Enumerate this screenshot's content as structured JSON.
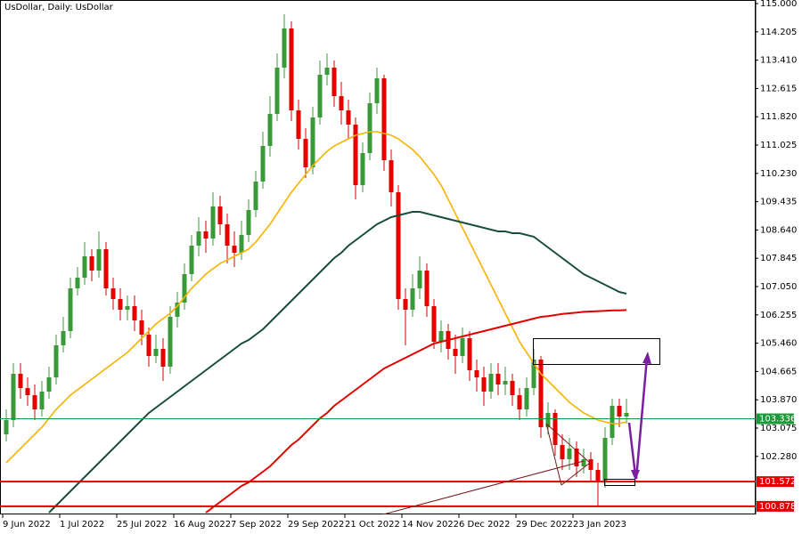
{
  "chart_data": {
    "type": "candlestick",
    "title": "UsDollar, Daily:  UsDollar",
    "categories": [
      "9 Jun 2022",
      null,
      null,
      null,
      null,
      null,
      null,
      null,
      "1 Jul 2022",
      null,
      null,
      null,
      null,
      null,
      null,
      null,
      "25 Jul 2022",
      null,
      null,
      null,
      null,
      null,
      null,
      null,
      "16 Aug 2022",
      null,
      null,
      null,
      null,
      null,
      null,
      null,
      "7 Sep 2022",
      null,
      null,
      null,
      null,
      null,
      null,
      null,
      "29 Sep 2022",
      null,
      null,
      null,
      null,
      null,
      null,
      null,
      "21 Oct 2022",
      null,
      null,
      null,
      null,
      null,
      null,
      null,
      "14 Nov 2022",
      null,
      null,
      null,
      null,
      null,
      null,
      null,
      "6 Dec 2022",
      null,
      null,
      null,
      null,
      null,
      null,
      null,
      "29 Dec 2022",
      null,
      null,
      null,
      null,
      null,
      null,
      null,
      "23 Jan 2023",
      null,
      null,
      null,
      null,
      null,
      null,
      null
    ],
    "open": [
      102.9,
      103.3,
      104.6,
      104.2,
      104.0,
      103.6,
      104.1,
      104.5,
      105.4,
      105.8,
      107.0,
      107.3,
      107.9,
      107.5,
      108.1,
      107.0,
      106.7,
      106.4,
      106.5,
      106.1,
      105.7,
      105.1,
      105.3,
      104.8,
      106.2,
      106.6,
      107.4,
      108.2,
      108.6,
      108.4,
      109.3,
      108.8,
      108.2,
      108.0,
      108.5,
      109.2,
      110.0,
      111.0,
      111.9,
      113.2,
      114.3,
      112.0,
      111.2,
      110.4,
      111.8,
      113.0,
      113.2,
      112.4,
      112.0,
      111.6,
      109.9,
      110.8,
      112.2,
      112.9,
      110.6,
      109.7,
      106.7,
      106.4,
      107.0,
      107.5,
      106.5,
      105.5,
      105.8,
      105.3,
      105.1,
      105.6,
      104.7,
      104.5,
      104.1,
      104.6,
      104.3,
      104.4,
      104.0,
      103.6,
      104.2,
      105.0,
      103.1,
      103.5,
      102.6,
      102.2,
      102.5,
      102.0,
      102.2,
      101.9,
      101.6,
      102.8,
      103.7,
      103.4
    ],
    "high": [
      103.6,
      104.9,
      104.9,
      104.5,
      104.3,
      104.4,
      104.8,
      105.7,
      106.2,
      107.3,
      107.6,
      108.3,
      108.1,
      108.6,
      108.3,
      107.3,
      107.0,
      106.8,
      106.8,
      106.4,
      105.9,
      105.7,
      105.6,
      106.5,
      106.9,
      107.7,
      108.5,
      109.0,
      108.9,
      109.7,
      109.6,
      109.1,
      108.6,
      108.9,
      109.5,
      110.3,
      111.4,
      112.4,
      113.6,
      114.7,
      114.5,
      112.3,
      111.5,
      112.1,
      113.4,
      113.6,
      113.4,
      112.8,
      112.3,
      111.8,
      111.1,
      112.5,
      113.2,
      113.0,
      110.9,
      109.9,
      107.0,
      107.4,
      107.9,
      107.7,
      106.7,
      106.1,
      106.0,
      105.7,
      105.9,
      105.8,
      105.0,
      104.8,
      104.9,
      104.9,
      104.8,
      104.6,
      104.2,
      104.5,
      105.3,
      105.1,
      103.8,
      103.6,
      102.9,
      102.8,
      102.7,
      102.5,
      102.4,
      102.1,
      103.1,
      103.9,
      103.9,
      103.9
    ],
    "low": [
      102.7,
      103.1,
      103.9,
      103.7,
      103.3,
      103.4,
      103.9,
      104.3,
      105.2,
      105.6,
      106.8,
      107.1,
      107.2,
      107.3,
      106.8,
      106.4,
      106.1,
      106.1,
      105.8,
      105.4,
      104.8,
      104.9,
      104.4,
      104.6,
      105.9,
      106.4,
      107.2,
      107.9,
      108.0,
      108.2,
      108.5,
      107.7,
      107.6,
      107.8,
      108.3,
      109.0,
      109.8,
      110.7,
      111.7,
      112.9,
      111.7,
      110.9,
      110.1,
      110.2,
      111.6,
      112.7,
      112.1,
      111.6,
      111.2,
      109.5,
      109.7,
      110.6,
      111.9,
      110.3,
      109.3,
      106.4,
      105.4,
      106.2,
      106.7,
      106.2,
      105.3,
      105.2,
      105.0,
      104.6,
      104.9,
      104.4,
      104.1,
      103.7,
      103.9,
      104.0,
      104.0,
      103.7,
      103.3,
      103.4,
      104.0,
      102.8,
      102.9,
      102.3,
      101.9,
      101.9,
      101.7,
      101.8,
      101.6,
      100.9,
      101.4,
      102.6,
      103.1,
      103.2
    ],
    "close": [
      103.3,
      104.6,
      104.2,
      104.0,
      103.6,
      104.1,
      104.5,
      105.4,
      105.8,
      107.0,
      107.3,
      107.9,
      107.5,
      108.1,
      107.0,
      106.7,
      106.4,
      106.5,
      106.1,
      105.7,
      105.1,
      105.3,
      104.8,
      106.2,
      106.6,
      107.4,
      108.2,
      108.6,
      108.4,
      109.3,
      108.8,
      108.2,
      108.0,
      108.5,
      109.2,
      110.0,
      111.0,
      111.9,
      113.2,
      114.3,
      112.0,
      111.2,
      110.4,
      111.8,
      113.0,
      113.2,
      112.4,
      112.0,
      111.6,
      109.9,
      110.8,
      112.2,
      112.9,
      110.6,
      109.7,
      106.7,
      106.4,
      107.0,
      107.5,
      106.5,
      105.5,
      105.8,
      105.3,
      105.1,
      105.6,
      104.7,
      104.5,
      104.1,
      104.6,
      104.3,
      104.4,
      104.0,
      103.6,
      104.2,
      105.0,
      103.1,
      103.5,
      102.6,
      102.2,
      102.5,
      102.0,
      102.2,
      101.9,
      101.6,
      102.8,
      103.7,
      103.4,
      103.5
    ],
    "up_color": "#3a9a3a",
    "down_color": "#e00000",
    "series": [
      {
        "color": "#f5b400",
        "values": [
          102.1,
          102.3,
          102.5,
          102.7,
          102.9,
          103.1,
          103.35,
          103.6,
          103.8,
          104.0,
          104.15,
          104.3,
          104.45,
          104.6,
          104.75,
          104.9,
          105.05,
          105.2,
          105.4,
          105.6,
          105.8,
          106.0,
          106.15,
          106.3,
          106.5,
          106.75,
          107.0,
          107.2,
          107.4,
          107.55,
          107.7,
          107.8,
          107.9,
          108.0,
          108.1,
          108.3,
          108.55,
          108.8,
          109.1,
          109.4,
          109.7,
          109.95,
          110.2,
          110.45,
          110.65,
          110.85,
          111.0,
          111.1,
          111.2,
          111.3,
          111.35,
          111.4,
          111.4,
          111.35,
          111.3,
          111.2,
          111.05,
          110.9,
          110.7,
          110.45,
          110.2,
          109.9,
          109.5,
          109.1,
          108.7,
          108.3,
          107.9,
          107.5,
          107.1,
          106.7,
          106.3,
          105.9,
          105.5,
          105.2,
          104.9,
          104.6,
          104.4,
          104.2,
          104.0,
          103.8,
          103.65,
          103.5,
          103.4,
          103.3,
          103.25,
          103.2,
          103.2,
          103.25
        ]
      },
      {
        "color": "#1b4d3e",
        "values": [
          null,
          null,
          null,
          null,
          null,
          null,
          100.7,
          100.9,
          101.1,
          101.3,
          101.5,
          101.7,
          101.9,
          102.1,
          102.3,
          102.5,
          102.7,
          102.9,
          103.1,
          103.3,
          103.5,
          103.65,
          103.8,
          103.95,
          104.1,
          104.25,
          104.4,
          104.55,
          104.7,
          104.85,
          105.0,
          105.15,
          105.3,
          105.45,
          105.55,
          105.7,
          105.85,
          106.05,
          106.25,
          106.45,
          106.65,
          106.85,
          107.05,
          107.25,
          107.45,
          107.65,
          107.85,
          108.0,
          108.2,
          108.35,
          108.5,
          108.65,
          108.8,
          108.9,
          109.0,
          109.05,
          109.1,
          109.15,
          109.15,
          109.1,
          109.05,
          109.0,
          108.95,
          108.9,
          108.85,
          108.8,
          108.75,
          108.7,
          108.65,
          108.6,
          108.6,
          108.55,
          108.55,
          108.5,
          108.45,
          108.3,
          108.15,
          108.0,
          107.85,
          107.7,
          107.55,
          107.4,
          107.3,
          107.2,
          107.1,
          107.0,
          106.9,
          106.85
        ]
      },
      {
        "color": "#e00000",
        "values": [
          null,
          null,
          null,
          null,
          null,
          null,
          null,
          null,
          null,
          null,
          null,
          null,
          null,
          null,
          null,
          null,
          null,
          null,
          null,
          null,
          null,
          null,
          null,
          null,
          null,
          null,
          null,
          null,
          100.7,
          100.85,
          101.0,
          101.15,
          101.3,
          101.45,
          101.55,
          101.7,
          101.85,
          102.0,
          102.2,
          102.4,
          102.6,
          102.75,
          102.95,
          103.15,
          103.35,
          103.5,
          103.7,
          103.85,
          104.0,
          104.15,
          104.3,
          104.45,
          104.6,
          104.75,
          104.85,
          104.95,
          105.05,
          105.15,
          105.25,
          105.35,
          105.45,
          105.5,
          105.55,
          105.6,
          105.65,
          105.7,
          105.75,
          105.8,
          105.85,
          105.9,
          105.95,
          106.0,
          106.05,
          106.1,
          106.15,
          106.2,
          106.22,
          106.25,
          106.28,
          106.3,
          106.32,
          106.34,
          106.35,
          106.36,
          106.37,
          106.38,
          106.38,
          106.39
        ]
      }
    ],
    "price_lines": [
      {
        "value": 103.336,
        "color": "#1a9a3a"
      },
      {
        "value": 101.572,
        "color": "#e00000"
      },
      {
        "value": 100.878,
        "color": "#e00000"
      }
    ],
    "ylim": [
      100.65,
      115.1
    ],
    "yticks": [
      {
        "value": 115,
        "label": "115.000"
      },
      114.205,
      {
        "value": 113.41,
        "label": "113.410"
      },
      112.615,
      {
        "value": 111.82,
        "label": "111.820"
      },
      111.025,
      {
        "value": 110.23,
        "label": "110.230"
      },
      109.435,
      {
        "value": 108.64,
        "label": "108.640"
      },
      107.845,
      {
        "value": 107.05,
        "label": "107.050"
      },
      106.255,
      {
        "value": 105.46,
        "label": "105.460"
      },
      104.665,
      {
        "value": 103.87,
        "label": "103.870"
      },
      103.075,
      {
        "value": 102.28,
        "label": "102.280"
      }
    ]
  }
}
